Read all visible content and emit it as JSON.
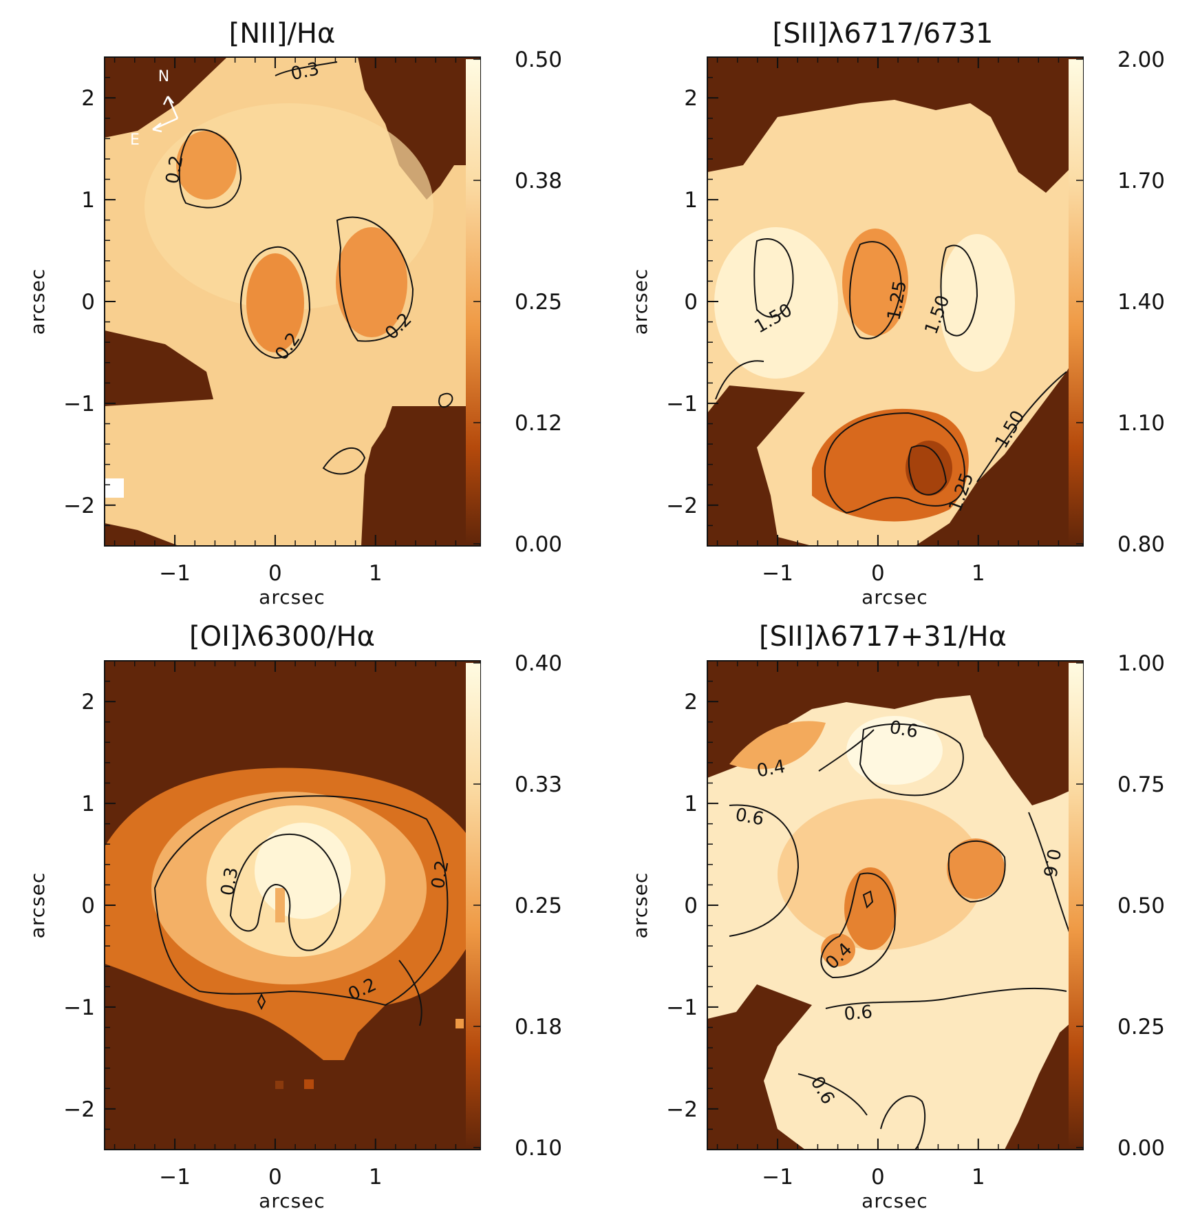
{
  "figure": {
    "panels": [
      {
        "id": "nii-ha",
        "title": "[NII]/Hα",
        "colorbar": {
          "ticks": [
            "0.50",
            "0.38",
            "0.25",
            "0.12",
            "0.00"
          ],
          "range": [
            0.0,
            0.5
          ]
        },
        "compass": {
          "north": "N",
          "east": "E"
        },
        "contour_labels": [
          "0.3",
          "0.2",
          "0.2",
          "0.2"
        ]
      },
      {
        "id": "sii-ratio",
        "title": "[SII]λ6717/6731",
        "colorbar": {
          "ticks": [
            "2.00",
            "1.70",
            "1.40",
            "1.10",
            "0.80"
          ],
          "range": [
            0.8,
            2.0
          ]
        },
        "contour_labels": [
          "1.50",
          "1.25",
          "1.50",
          "1.50",
          "1.25"
        ]
      },
      {
        "id": "oi-ha",
        "title": "[OI]λ6300/Hα",
        "colorbar": {
          "ticks": [
            "0.40",
            "0.33",
            "0.25",
            "0.18",
            "0.10"
          ],
          "range": [
            0.1,
            0.4
          ]
        },
        "contour_labels": [
          "0.3",
          "0.2",
          "0.2"
        ]
      },
      {
        "id": "sii-ha",
        "title": "[SII]λ6717+31/Hα",
        "colorbar": {
          "ticks": [
            "1.00",
            "0.75",
            "0.50",
            "0.25",
            "0.00"
          ],
          "range": [
            0.0,
            1.0
          ]
        },
        "contour_labels": [
          "0.6",
          "0.4",
          "0.6",
          "0.4",
          "0.6",
          "0.6",
          "0.6"
        ]
      }
    ]
  },
  "chart_data": [
    {
      "type": "heatmap",
      "title": "[NII]/Hα",
      "xlabel": "arcsec",
      "ylabel": "arcsec",
      "xlim": [
        -1.7,
        1.9
      ],
      "ylim": [
        -2.4,
        2.4
      ],
      "xticks": [
        "−1",
        "0",
        "1"
      ],
      "yticks": [
        "2",
        "1",
        "0",
        "−1",
        "−2"
      ],
      "colorbar_range": [
        0.0,
        0.5
      ],
      "colormap": [
        "#61260a",
        "#c5550f",
        "#f0a050",
        "#fbdda3",
        "#fffbe0"
      ],
      "contour_levels": [
        0.2,
        0.3
      ],
      "features": [
        {
          "kind": "minimum",
          "x": -0.75,
          "y": 1.4,
          "value": 0.16
        },
        {
          "kind": "minimum",
          "x": -0.1,
          "y": 0.05,
          "value": 0.14
        },
        {
          "kind": "minimum",
          "x": 0.85,
          "y": 0.3,
          "value": 0.15
        }
      ]
    },
    {
      "type": "heatmap",
      "title": "[SII]λ6717/6731",
      "xlabel": "arcsec",
      "ylabel": "arcsec",
      "xlim": [
        -1.7,
        1.9
      ],
      "ylim": [
        -2.4,
        2.4
      ],
      "xticks": [
        "−1",
        "0",
        "1"
      ],
      "yticks": [
        "2",
        "1",
        "0",
        "−1",
        "−2"
      ],
      "colorbar_range": [
        0.8,
        2.0
      ],
      "colormap": [
        "#61260a",
        "#c5550f",
        "#f0a050",
        "#fbdda3",
        "#fffbe0"
      ],
      "contour_levels": [
        1.25,
        1.5
      ],
      "features": [
        {
          "kind": "minimum",
          "x": -0.1,
          "y": 0.2,
          "value": 1.2
        },
        {
          "kind": "minimum",
          "x": 0.4,
          "y": -1.6,
          "value": 0.95
        }
      ]
    },
    {
      "type": "heatmap",
      "title": "[OI]λ6300/Hα",
      "xlabel": "arcsec",
      "ylabel": "arcsec",
      "xlim": [
        -1.7,
        1.9
      ],
      "ylim": [
        -2.4,
        2.4
      ],
      "xticks": [
        "−1",
        "0",
        "1"
      ],
      "yticks": [
        "2",
        "1",
        "0",
        "−1",
        "−2"
      ],
      "colorbar_range": [
        0.1,
        0.4
      ],
      "colormap": [
        "#61260a",
        "#c5550f",
        "#f0a050",
        "#fbdda3",
        "#fffbe0"
      ],
      "contour_levels": [
        0.2,
        0.3
      ],
      "features": [
        {
          "kind": "maximum",
          "x": 0.2,
          "y": 0.35,
          "value": 0.38
        },
        {
          "kind": "minimum",
          "x": 0.0,
          "y": 0.0,
          "value": 0.28
        }
      ]
    },
    {
      "type": "heatmap",
      "title": "[SII]λ6717+31/Hα",
      "xlabel": "arcsec",
      "ylabel": "arcsec",
      "xlim": [
        -1.7,
        1.9
      ],
      "ylim": [
        -2.4,
        2.4
      ],
      "xticks": [
        "−1",
        "0",
        "1"
      ],
      "yticks": [
        "2",
        "1",
        "0",
        "−1",
        "−2"
      ],
      "colorbar_range": [
        0.0,
        1.0
      ],
      "colormap": [
        "#61260a",
        "#c5550f",
        "#f0a050",
        "#fbdda3",
        "#fffbe0"
      ],
      "contour_levels": [
        0.4,
        0.6
      ],
      "features": [
        {
          "kind": "minimum",
          "x": 0.0,
          "y": 0.0,
          "value": 0.32
        },
        {
          "kind": "minimum",
          "x": 0.95,
          "y": 0.3,
          "value": 0.38
        }
      ]
    }
  ]
}
